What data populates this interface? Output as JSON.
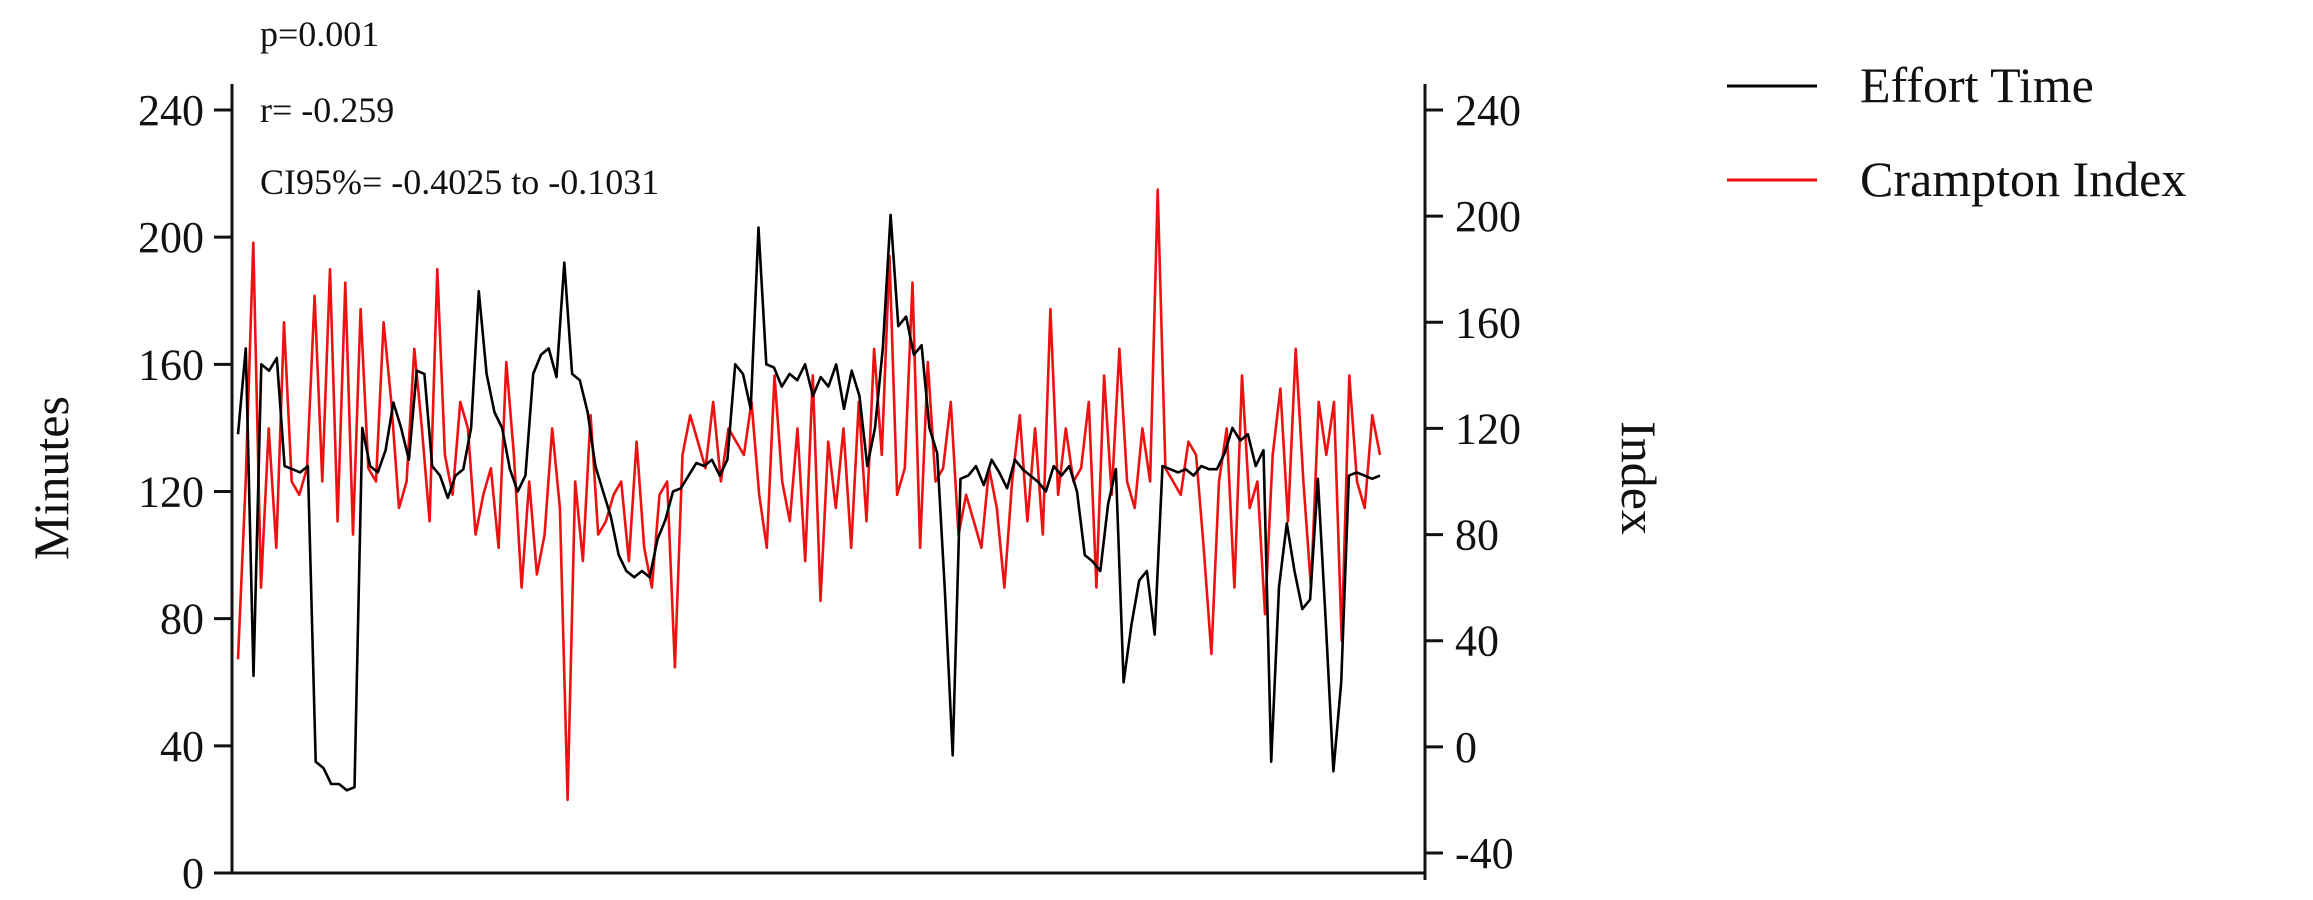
{
  "chart_data": {
    "type": "line",
    "annotations": [
      "p=0.001",
      "r= -0.259",
      "CI95%= -0.4025 to -0.1031"
    ],
    "y_left": {
      "label": "Minutes",
      "ylim": [
        0,
        240
      ],
      "ticks": [
        0,
        40,
        80,
        120,
        160,
        200,
        240
      ]
    },
    "y_right": {
      "label": "Index",
      "ylim": [
        -40,
        240
      ],
      "ticks": [
        -40,
        0,
        40,
        80,
        120,
        160,
        200,
        240
      ]
    },
    "x": {
      "label": "",
      "ticks": [],
      "n_points": 150
    },
    "grid": false,
    "legend": {
      "position": "top-right",
      "entries": [
        "Effort Time",
        "Crampton Index"
      ]
    },
    "series": [
      {
        "name": "Effort Time",
        "axis": "left",
        "color": "#000000",
        "values": [
          138,
          165,
          62,
          160,
          158,
          162,
          128,
          127,
          126,
          128,
          35,
          33,
          28,
          28,
          26,
          27,
          140,
          128,
          126,
          133,
          148,
          140,
          130,
          158,
          157,
          128,
          125,
          118,
          125,
          127,
          140,
          183,
          157,
          145,
          140,
          127,
          120,
          125,
          157,
          163,
          165,
          156,
          192,
          157,
          155,
          145,
          128,
          120,
          112,
          100,
          95,
          93,
          95,
          93,
          105,
          111,
          120,
          121,
          125,
          129,
          128,
          130,
          125,
          130,
          160,
          157,
          146,
          203,
          160,
          159,
          153,
          157,
          155,
          160,
          150,
          156,
          153,
          160,
          146,
          158,
          150,
          128,
          140,
          165,
          207,
          172,
          175,
          163,
          166,
          140,
          132,
          88,
          37,
          124,
          125,
          128,
          122,
          130,
          126,
          121,
          130,
          127,
          125,
          123,
          120,
          128,
          125,
          128,
          120,
          100,
          98,
          95,
          116,
          127,
          60,
          78,
          92,
          95,
          75,
          128,
          127,
          126,
          127,
          125,
          128,
          127,
          127,
          132,
          140,
          136,
          138,
          128,
          133,
          35,
          90,
          110,
          95,
          83,
          86,
          124,
          80,
          32,
          60,
          125,
          126,
          125,
          124,
          125
        ]
      },
      {
        "name": "Crampton Index",
        "axis": "right",
        "color": "#ee1111",
        "values": [
          33,
          100,
          190,
          60,
          120,
          75,
          160,
          100,
          95,
          105,
          170,
          100,
          180,
          85,
          175,
          80,
          165,
          105,
          100,
          160,
          130,
          90,
          100,
          150,
          120,
          85,
          180,
          110,
          95,
          130,
          120,
          80,
          95,
          105,
          75,
          145,
          110,
          60,
          100,
          65,
          80,
          120,
          90,
          -20,
          100,
          70,
          125,
          80,
          85,
          95,
          100,
          70,
          115,
          75,
          60,
          95,
          100,
          30,
          110,
          125,
          115,
          105,
          130,
          100,
          120,
          115,
          110,
          130,
          95,
          75,
          140,
          100,
          85,
          120,
          70,
          140,
          55,
          115,
          90,
          120,
          75,
          130,
          85,
          150,
          110,
          185,
          95,
          105,
          175,
          75,
          145,
          100,
          105,
          130,
          80,
          95,
          85,
          75,
          105,
          90,
          60,
          100,
          125,
          85,
          120,
          80,
          165,
          95,
          120,
          100,
          105,
          130,
          60,
          140,
          95,
          150,
          100,
          90,
          120,
          100,
          210,
          105,
          100,
          95,
          115,
          110,
          75,
          35,
          100,
          120,
          60,
          140,
          90,
          100,
          50,
          110,
          135,
          85,
          150,
          100,
          60,
          130,
          110,
          130,
          40,
          140,
          100,
          90,
          125,
          110
        ]
      }
    ]
  },
  "legend_colors": {
    "effort": "#000000",
    "crampton": "#ee1111"
  }
}
